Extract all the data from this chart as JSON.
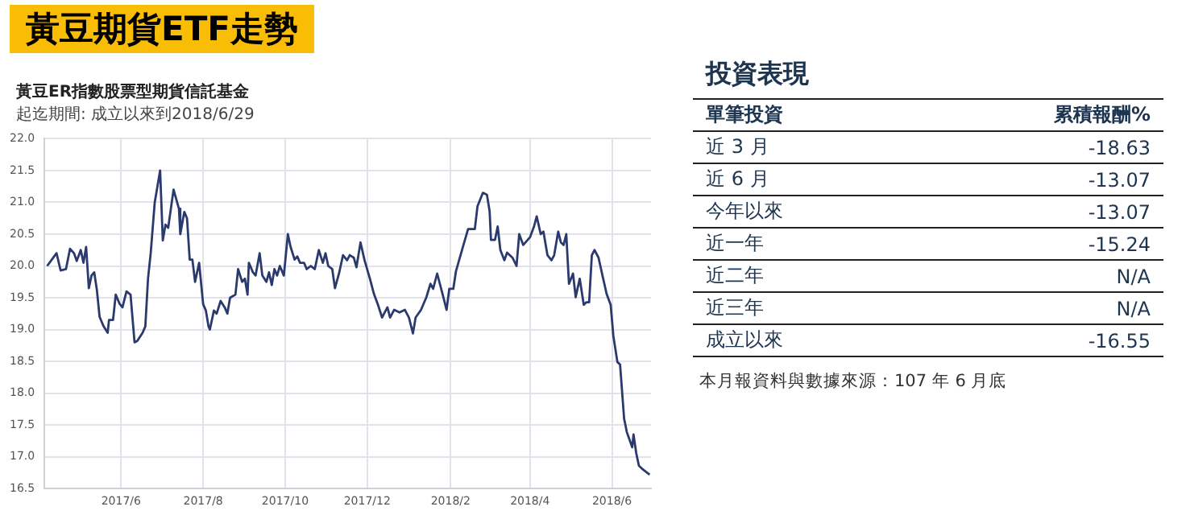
{
  "chart_data": [
    {
      "type": "line",
      "title": "黃豆期貨ETF走勢",
      "subtitle": "黃豆ER指數股票型期貨信託基金",
      "annotations": [
        "起迄期間: 成立以來到2018/6/29"
      ],
      "x": [
        "2017-04-07",
        "2017-04-14",
        "2017-04-17",
        "2017-04-21",
        "2017-04-24",
        "2017-04-27",
        "2017-04-29",
        "2017-05-02",
        "2017-05-04",
        "2017-05-06",
        "2017-05-08",
        "2017-05-10",
        "2017-05-12",
        "2017-05-14",
        "2017-05-16",
        "2017-05-19",
        "2017-05-22",
        "2017-05-23",
        "2017-05-26",
        "2017-05-28",
        "2017-05-31",
        "2017-06-02",
        "2017-06-05",
        "2017-06-08",
        "2017-06-11",
        "2017-06-13",
        "2017-06-17",
        "2017-06-19",
        "2017-06-21",
        "2017-06-23",
        "2017-06-26",
        "2017-06-30",
        "2017-07-02",
        "2017-07-04",
        "2017-07-06",
        "2017-07-10",
        "2017-07-14",
        "2017-07-15",
        "2017-07-18",
        "2017-07-20",
        "2017-07-22",
        "2017-07-24",
        "2017-07-26",
        "2017-07-29",
        "2017-08-01",
        "2017-08-03",
        "2017-08-05",
        "2017-08-06",
        "2017-08-09",
        "2017-08-11",
        "2017-08-14",
        "2017-08-17",
        "2017-08-19",
        "2017-08-21",
        "2017-08-25",
        "2017-08-27",
        "2017-08-30",
        "2017-09-01",
        "2017-09-03",
        "2017-09-04",
        "2017-09-07",
        "2017-09-09",
        "2017-09-12",
        "2017-09-14",
        "2017-09-17",
        "2017-09-19",
        "2017-09-21",
        "2017-09-23",
        "2017-09-25",
        "2017-09-27",
        "2017-09-30",
        "2017-10-03",
        "2017-10-05",
        "2017-10-08",
        "2017-10-10",
        "2017-10-12",
        "2017-10-15",
        "2017-10-17",
        "2017-10-20",
        "2017-10-23",
        "2017-10-26",
        "2017-10-29",
        "2017-10-31",
        "2017-11-02",
        "2017-11-05",
        "2017-11-07",
        "2017-11-10",
        "2017-11-13",
        "2017-11-16",
        "2017-11-18",
        "2017-11-21",
        "2017-11-23",
        "2017-11-26",
        "2017-11-29",
        "2017-12-03",
        "2017-12-06",
        "2017-12-09",
        "2017-12-12",
        "2017-12-16",
        "2017-12-18",
        "2017-12-21",
        "2017-12-25",
        "2017-12-29",
        "2018-01-01",
        "2018-01-04",
        "2018-01-06",
        "2018-01-10",
        "2018-01-14",
        "2018-01-17",
        "2018-01-19",
        "2018-01-22",
        "2018-01-26",
        "2018-01-29",
        "2018-01-31",
        "2018-02-03",
        "2018-02-05",
        "2018-02-10",
        "2018-02-14",
        "2018-02-19",
        "2018-02-21",
        "2018-02-25",
        "2018-02-28",
        "2018-03-02",
        "2018-03-03",
        "2018-03-06",
        "2018-03-08",
        "2018-03-10",
        "2018-03-13",
        "2018-03-15",
        "2018-03-19",
        "2018-03-22",
        "2018-03-24",
        "2018-03-27",
        "2018-04-01",
        "2018-04-04",
        "2018-04-06",
        "2018-04-09",
        "2018-04-11",
        "2018-04-14",
        "2018-04-17",
        "2018-04-19",
        "2018-04-22",
        "2018-04-24",
        "2018-04-26",
        "2018-04-28",
        "2018-04-30",
        "2018-05-03",
        "2018-05-05",
        "2018-05-08",
        "2018-05-11",
        "2018-05-13",
        "2018-05-15",
        "2018-05-17",
        "2018-05-19",
        "2018-05-22",
        "2018-05-25",
        "2018-05-28",
        "2018-05-31",
        "2018-06-02",
        "2018-06-05",
        "2018-06-07",
        "2018-06-10",
        "2018-06-12",
        "2018-06-16",
        "2018-06-17",
        "2018-06-19",
        "2018-06-21",
        "2018-06-24",
        "2018-06-29"
      ],
      "series": [
        {
          "color": "#2b3a6e",
          "values": [
            20.0,
            20.2,
            19.93,
            19.95,
            20.27,
            20.2,
            20.08,
            20.25,
            20.05,
            20.3,
            19.65,
            19.85,
            19.9,
            19.62,
            19.2,
            19.05,
            18.95,
            19.15,
            19.15,
            19.55,
            19.4,
            19.35,
            19.6,
            19.55,
            18.8,
            18.82,
            18.95,
            19.05,
            19.8,
            20.2,
            21.0,
            21.5,
            20.4,
            20.65,
            20.6,
            21.2,
            20.9,
            20.5,
            20.85,
            20.75,
            20.1,
            20.1,
            19.75,
            20.05,
            19.4,
            19.3,
            19.05,
            19.0,
            19.3,
            19.25,
            19.45,
            19.35,
            19.25,
            19.5,
            19.55,
            19.95,
            19.75,
            19.8,
            19.55,
            20.05,
            19.9,
            19.85,
            20.2,
            19.85,
            19.75,
            19.9,
            19.7,
            19.95,
            19.85,
            20.0,
            19.85,
            20.5,
            20.3,
            20.1,
            20.15,
            20.05,
            20.05,
            19.95,
            20.0,
            19.95,
            20.25,
            20.05,
            20.2,
            20.0,
            19.95,
            19.65,
            19.88,
            20.17,
            20.09,
            20.17,
            20.13,
            19.98,
            20.37,
            20.09,
            19.8,
            19.56,
            19.39,
            19.19,
            19.35,
            19.19,
            19.31,
            19.27,
            19.31,
            19.19,
            18.94,
            19.19,
            19.31,
            19.51,
            19.72,
            19.64,
            19.88,
            19.56,
            19.31,
            19.64,
            19.64,
            19.92,
            20.29,
            20.58,
            20.58,
            20.94,
            21.15,
            21.12,
            20.86,
            20.41,
            20.41,
            20.62,
            20.25,
            20.09,
            20.21,
            20.13,
            20.0,
            20.5,
            20.33,
            20.45,
            20.62,
            20.78,
            20.5,
            20.54,
            20.17,
            20.09,
            20.17,
            20.54,
            20.37,
            20.33,
            20.5,
            19.72,
            19.88,
            19.51,
            19.8,
            19.39,
            19.43,
            19.43,
            20.17,
            20.25,
            20.13,
            19.84,
            19.56,
            19.39,
            18.9,
            18.49,
            18.45,
            17.6,
            17.39,
            17.15,
            17.35,
            17.06,
            16.86,
            16.8,
            16.72
          ]
        }
      ],
      "xlim": [
        "2017-04-05",
        "2018-06-30"
      ],
      "xticks": [
        {
          "value": "2017-06-01",
          "label": "2017/6"
        },
        {
          "value": "2017-08-01",
          "label": "2017/8"
        },
        {
          "value": "2017-10-01",
          "label": "2017/10"
        },
        {
          "value": "2017-12-01",
          "label": "2017/12"
        },
        {
          "value": "2018-02-01",
          "label": "2018/2"
        },
        {
          "value": "2018-04-01",
          "label": "2018/4"
        },
        {
          "value": "2018-06-01",
          "label": "2018/6"
        }
      ],
      "ylim": [
        16.5,
        22.0
      ],
      "yticks": [
        16.5,
        {
          "value": 17,
          "label": "17.0"
        },
        17.5,
        {
          "value": 18,
          "label": "18.0"
        },
        18.5,
        {
          "value": 19,
          "label": "19.0"
        },
        19.5,
        {
          "value": 20,
          "label": "20.0"
        },
        20.5,
        {
          "value": 21,
          "label": "21.0"
        },
        21.5,
        {
          "value": 22,
          "label": "22.0"
        }
      ],
      "grid": true,
      "legend": false,
      "marker": "none",
      "line_style": "solid"
    },
    {
      "type": "other",
      "title": "投資表現",
      "xlabel": "單筆投資",
      "ylabel": "累積報酬%",
      "categories": [
        "近 3 月",
        "近 6 月",
        "今年以來",
        "近一年",
        "近二年",
        "近三年",
        "成立以來"
      ],
      "value_labels": [
        "-18.63",
        "-13.07",
        "-13.07",
        "-15.24",
        "N/A",
        "N/A",
        "-16.55"
      ],
      "annotations": [
        "本月報資料與數據來源：107 年 6 月底"
      ]
    }
  ]
}
